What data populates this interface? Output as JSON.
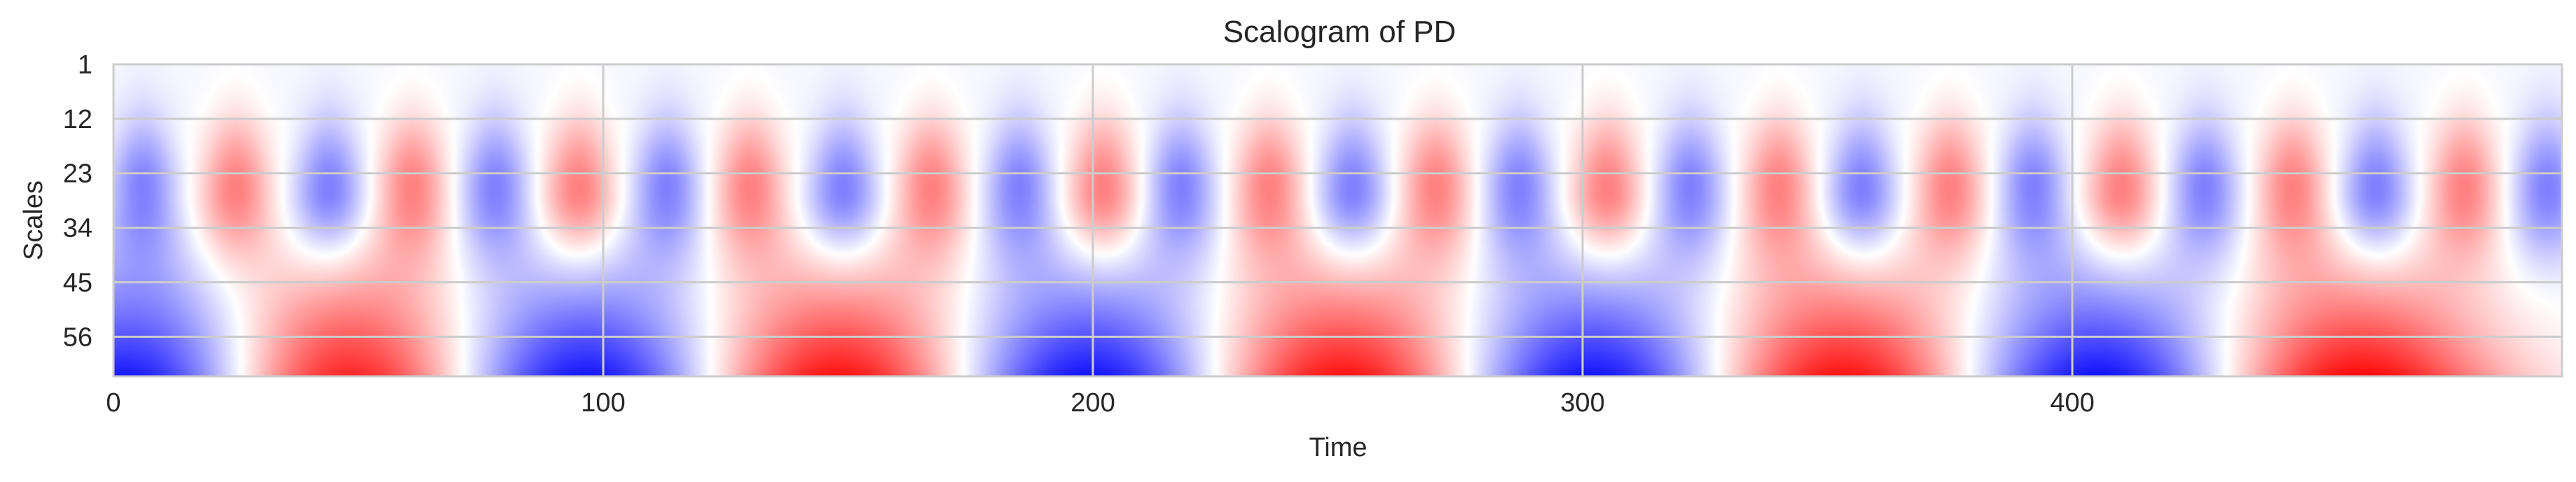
{
  "chart_data": {
    "type": "heatmap",
    "title": "Scalogram of PD",
    "xlabel": "Time",
    "ylabel": "Scales",
    "xlim": [
      0,
      500
    ],
    "x_ticks": [
      0,
      100,
      200,
      300,
      400
    ],
    "y_ticks": [
      1,
      12,
      23,
      34,
      45,
      56
    ],
    "scale_range": [
      1,
      64
    ],
    "colormap": "bwr",
    "grid": true,
    "colors": {
      "positive": "#ff0000",
      "zero": "#ffffff",
      "negative": "#0000ff",
      "grid": "#cccccc",
      "frame": "#cccccc"
    },
    "large_scale_extrema": [
      {
        "time": 5,
        "sign": -1
      },
      {
        "time": 47,
        "sign": 1
      },
      {
        "time": 96,
        "sign": -1
      },
      {
        "time": 148,
        "sign": 1
      },
      {
        "time": 199,
        "sign": -1
      },
      {
        "time": 251,
        "sign": 1
      },
      {
        "time": 302,
        "sign": -1
      },
      {
        "time": 353,
        "sign": 1
      },
      {
        "time": 405,
        "sign": -1
      },
      {
        "time": 458,
        "sign": 1
      }
    ],
    "mid_scale_extrema": [
      {
        "time": 6,
        "sign": -1
      },
      {
        "time": 25,
        "sign": 1
      },
      {
        "time": 44,
        "sign": -1
      },
      {
        "time": 61,
        "sign": 1
      },
      {
        "time": 78,
        "sign": -1
      },
      {
        "time": 95,
        "sign": 1
      },
      {
        "time": 113,
        "sign": -1
      },
      {
        "time": 130,
        "sign": 1
      },
      {
        "time": 149,
        "sign": -1
      },
      {
        "time": 167,
        "sign": 1
      },
      {
        "time": 185,
        "sign": -1
      },
      {
        "time": 202,
        "sign": 1
      },
      {
        "time": 218,
        "sign": -1
      },
      {
        "time": 236,
        "sign": 1
      },
      {
        "time": 253,
        "sign": -1
      },
      {
        "time": 270,
        "sign": 1
      },
      {
        "time": 287,
        "sign": -1
      },
      {
        "time": 305,
        "sign": 1
      },
      {
        "time": 322,
        "sign": -1
      },
      {
        "time": 340,
        "sign": 1
      },
      {
        "time": 357,
        "sign": -1
      },
      {
        "time": 375,
        "sign": 1
      },
      {
        "time": 392,
        "sign": -1
      },
      {
        "time": 410,
        "sign": 1
      },
      {
        "time": 427,
        "sign": -1
      },
      {
        "time": 445,
        "sign": 1
      },
      {
        "time": 462,
        "sign": -1
      },
      {
        "time": 480,
        "sign": 1
      },
      {
        "time": 497,
        "sign": -1
      }
    ]
  }
}
